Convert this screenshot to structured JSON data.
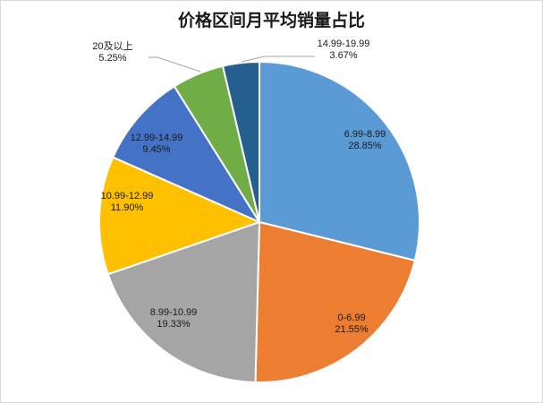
{
  "chart_data": {
    "type": "pie",
    "title": "价格区间月平均销量占比",
    "unit": "%",
    "slices": [
      {
        "label": "6.99-8.99",
        "value": 28.85,
        "display": "28.85%",
        "color": "#5b9bd5"
      },
      {
        "label": "0-6.99",
        "value": 21.55,
        "display": "21.55%",
        "color": "#ed7d31"
      },
      {
        "label": "8.99-10.99",
        "value": 19.33,
        "display": "19.33%",
        "color": "#a5a5a5"
      },
      {
        "label": "10.99-12.99",
        "value": 11.9,
        "display": "11.90%",
        "color": "#ffc000"
      },
      {
        "label": "12.99-14.99",
        "value": 9.45,
        "display": "9.45%",
        "color": "#4472c4"
      },
      {
        "label": "20及以上",
        "value": 5.25,
        "display": "5.25%",
        "color": "#70ad47"
      },
      {
        "label": "14.99-19.99",
        "value": 3.67,
        "display": "3.67%",
        "color": "#255e91"
      }
    ],
    "start_angle": "12 o'clock",
    "direction": "clockwise",
    "legend": "none",
    "data_labels": "category and percentage"
  }
}
